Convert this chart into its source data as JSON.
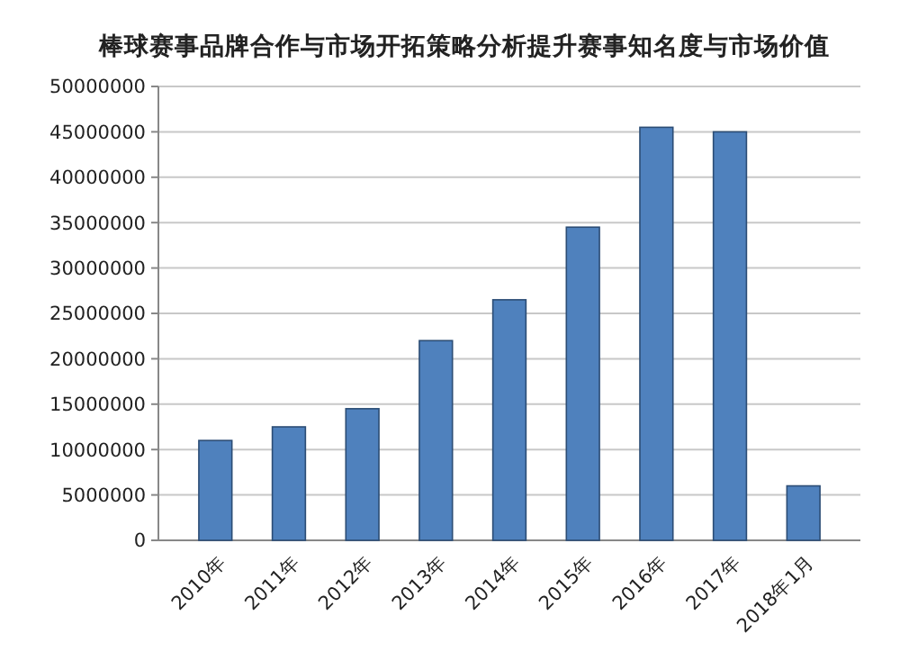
{
  "chart_data": {
    "type": "bar",
    "title": "棒球赛事品牌合作与市场开拓策略分析提升赛事知名度与市场价值",
    "categories": [
      "2010年",
      "2011年",
      "2012年",
      "2013年",
      "2014年",
      "2015年",
      "2016年",
      "2017年",
      "2018年1月"
    ],
    "values": [
      11000000,
      12500000,
      14500000,
      22000000,
      26500000,
      34500000,
      45500000,
      45000000,
      6000000
    ],
    "color": "#4f81bd",
    "ylim": [
      0,
      50000000
    ],
    "yticks": [
      0,
      5000000,
      10000000,
      15000000,
      20000000,
      25000000,
      30000000,
      35000000,
      40000000,
      45000000,
      50000000
    ],
    "grid": true
  }
}
